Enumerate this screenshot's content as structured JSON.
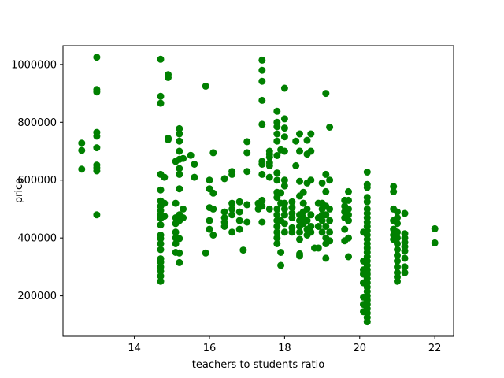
{
  "chart_data": {
    "type": "scatter",
    "xlabel": "teachers to students ratio",
    "ylabel": "price",
    "xlim": [
      12.1,
      22.5
    ],
    "ylim": [
      60000,
      1065000
    ],
    "xticks": [
      14,
      16,
      18,
      20,
      22
    ],
    "yticks": [
      200000,
      400000,
      600000,
      800000,
      1000000
    ],
    "grid": false,
    "marker_color": "#008000",
    "points": [
      [
        12.6,
        728000
      ],
      [
        12.6,
        703000
      ],
      [
        12.6,
        638000
      ],
      [
        13.0,
        1025000
      ],
      [
        13.0,
        913000
      ],
      [
        13.0,
        905000
      ],
      [
        13.0,
        765000
      ],
      [
        13.0,
        752000
      ],
      [
        13.0,
        712000
      ],
      [
        13.0,
        652000
      ],
      [
        13.0,
        643000
      ],
      [
        13.0,
        632000
      ],
      [
        13.0,
        480000
      ],
      [
        14.7,
        1018000
      ],
      [
        14.7,
        890000
      ],
      [
        14.7,
        866000
      ],
      [
        14.7,
        620000
      ],
      [
        14.7,
        566000
      ],
      [
        14.7,
        528000
      ],
      [
        14.7,
        510000
      ],
      [
        14.7,
        495000
      ],
      [
        14.7,
        480000
      ],
      [
        14.7,
        468000
      ],
      [
        14.7,
        445000
      ],
      [
        14.7,
        410000
      ],
      [
        14.7,
        398000
      ],
      [
        14.7,
        380000
      ],
      [
        14.7,
        360000
      ],
      [
        14.7,
        328000
      ],
      [
        14.7,
        316000
      ],
      [
        14.7,
        300000
      ],
      [
        14.7,
        285000
      ],
      [
        14.7,
        268000
      ],
      [
        14.7,
        250000
      ],
      [
        14.8,
        520000
      ],
      [
        14.8,
        475000
      ],
      [
        14.8,
        610000
      ],
      [
        14.9,
        965000
      ],
      [
        14.9,
        955000
      ],
      [
        14.9,
        745000
      ],
      [
        14.9,
        740000
      ],
      [
        15.1,
        665000
      ],
      [
        15.1,
        520000
      ],
      [
        15.1,
        470000
      ],
      [
        15.1,
        450000
      ],
      [
        15.1,
        420000
      ],
      [
        15.1,
        400000
      ],
      [
        15.1,
        380000
      ],
      [
        15.1,
        350000
      ],
      [
        15.2,
        778000
      ],
      [
        15.2,
        760000
      ],
      [
        15.2,
        735000
      ],
      [
        15.2,
        700000
      ],
      [
        15.2,
        672000
      ],
      [
        15.2,
        640000
      ],
      [
        15.2,
        620000
      ],
      [
        15.2,
        570000
      ],
      [
        15.2,
        480000
      ],
      [
        15.2,
        460000
      ],
      [
        15.2,
        398000
      ],
      [
        15.2,
        348000
      ],
      [
        15.2,
        315000
      ],
      [
        15.3,
        675000
      ],
      [
        15.3,
        500000
      ],
      [
        15.3,
        470000
      ],
      [
        15.5,
        686000
      ],
      [
        15.6,
        655000
      ],
      [
        15.6,
        610000
      ],
      [
        15.9,
        925000
      ],
      [
        15.9,
        348000
      ],
      [
        16.0,
        600000
      ],
      [
        16.0,
        570000
      ],
      [
        16.0,
        505000
      ],
      [
        16.0,
        460000
      ],
      [
        16.0,
        430000
      ],
      [
        16.1,
        695000
      ],
      [
        16.1,
        555000
      ],
      [
        16.1,
        500000
      ],
      [
        16.1,
        410000
      ],
      [
        16.4,
        605000
      ],
      [
        16.4,
        490000
      ],
      [
        16.4,
        470000
      ],
      [
        16.4,
        455000
      ],
      [
        16.4,
        440000
      ],
      [
        16.6,
        630000
      ],
      [
        16.6,
        620000
      ],
      [
        16.6,
        520000
      ],
      [
        16.6,
        500000
      ],
      [
        16.6,
        480000
      ],
      [
        16.6,
        420000
      ],
      [
        16.8,
        525000
      ],
      [
        16.8,
        490000
      ],
      [
        16.8,
        460000
      ],
      [
        16.8,
        430000
      ],
      [
        16.9,
        358000
      ],
      [
        17.0,
        733000
      ],
      [
        17.0,
        695000
      ],
      [
        17.0,
        630000
      ],
      [
        17.0,
        515000
      ],
      [
        17.0,
        455000
      ],
      [
        17.3,
        520000
      ],
      [
        17.3,
        500000
      ],
      [
        17.4,
        1015000
      ],
      [
        17.4,
        980000
      ],
      [
        17.4,
        942000
      ],
      [
        17.4,
        876000
      ],
      [
        17.4,
        793000
      ],
      [
        17.4,
        665000
      ],
      [
        17.4,
        655000
      ],
      [
        17.4,
        620000
      ],
      [
        17.4,
        530000
      ],
      [
        17.4,
        510000
      ],
      [
        17.4,
        455000
      ],
      [
        17.6,
        700000
      ],
      [
        17.6,
        690000
      ],
      [
        17.6,
        680000
      ],
      [
        17.6,
        660000
      ],
      [
        17.6,
        650000
      ],
      [
        17.6,
        610000
      ],
      [
        17.6,
        500000
      ],
      [
        17.8,
        838000
      ],
      [
        17.8,
        800000
      ],
      [
        17.8,
        785000
      ],
      [
        17.8,
        760000
      ],
      [
        17.8,
        735000
      ],
      [
        17.8,
        685000
      ],
      [
        17.8,
        625000
      ],
      [
        17.8,
        600000
      ],
      [
        17.8,
        558000
      ],
      [
        17.8,
        540000
      ],
      [
        17.8,
        500000
      ],
      [
        17.8,
        480000
      ],
      [
        17.8,
        460000
      ],
      [
        17.8,
        440000
      ],
      [
        17.8,
        420000
      ],
      [
        17.8,
        400000
      ],
      [
        17.8,
        380000
      ],
      [
        17.9,
        705000
      ],
      [
        17.9,
        556000
      ],
      [
        17.9,
        520000
      ],
      [
        17.9,
        460000
      ],
      [
        17.9,
        350000
      ],
      [
        17.9,
        305000
      ],
      [
        18.0,
        918000
      ],
      [
        18.0,
        812000
      ],
      [
        18.0,
        780000
      ],
      [
        18.0,
        750000
      ],
      [
        18.0,
        700000
      ],
      [
        18.0,
        600000
      ],
      [
        18.0,
        580000
      ],
      [
        18.0,
        520000
      ],
      [
        18.0,
        500000
      ],
      [
        18.0,
        480000
      ],
      [
        18.0,
        450000
      ],
      [
        18.0,
        420000
      ],
      [
        18.2,
        525000
      ],
      [
        18.2,
        505000
      ],
      [
        18.2,
        485000
      ],
      [
        18.2,
        470000
      ],
      [
        18.2,
        435000
      ],
      [
        18.2,
        420000
      ],
      [
        18.3,
        735000
      ],
      [
        18.3,
        650000
      ],
      [
        18.4,
        760000
      ],
      [
        18.4,
        700000
      ],
      [
        18.4,
        596000
      ],
      [
        18.4,
        545000
      ],
      [
        18.4,
        480000
      ],
      [
        18.4,
        460000
      ],
      [
        18.4,
        440000
      ],
      [
        18.4,
        420000
      ],
      [
        18.4,
        395000
      ],
      [
        18.4,
        345000
      ],
      [
        18.4,
        338000
      ],
      [
        18.5,
        558000
      ],
      [
        18.5,
        520000
      ],
      [
        18.5,
        490000
      ],
      [
        18.5,
        470000
      ],
      [
        18.5,
        450000
      ],
      [
        18.6,
        738000
      ],
      [
        18.6,
        690000
      ],
      [
        18.6,
        590000
      ],
      [
        18.6,
        500000
      ],
      [
        18.6,
        460000
      ],
      [
        18.6,
        430000
      ],
      [
        18.6,
        410000
      ],
      [
        18.7,
        760000
      ],
      [
        18.7,
        700000
      ],
      [
        18.7,
        600000
      ],
      [
        18.7,
        480000
      ],
      [
        18.7,
        440000
      ],
      [
        18.7,
        420000
      ],
      [
        18.8,
        365000
      ],
      [
        18.9,
        520000
      ],
      [
        18.9,
        470000
      ],
      [
        18.9,
        440000
      ],
      [
        18.9,
        365000
      ],
      [
        19.0,
        590000
      ],
      [
        19.0,
        520000
      ],
      [
        19.0,
        500000
      ],
      [
        19.0,
        480000
      ],
      [
        19.0,
        460000
      ],
      [
        19.0,
        420000
      ],
      [
        19.1,
        900000
      ],
      [
        19.1,
        620000
      ],
      [
        19.1,
        560000
      ],
      [
        19.1,
        510000
      ],
      [
        19.1,
        480000
      ],
      [
        19.1,
        440000
      ],
      [
        19.1,
        400000
      ],
      [
        19.1,
        380000
      ],
      [
        19.1,
        330000
      ],
      [
        19.2,
        783000
      ],
      [
        19.2,
        600000
      ],
      [
        19.2,
        500000
      ],
      [
        19.2,
        460000
      ],
      [
        19.2,
        420000
      ],
      [
        19.2,
        390000
      ],
      [
        19.6,
        530000
      ],
      [
        19.6,
        510000
      ],
      [
        19.6,
        490000
      ],
      [
        19.6,
        470000
      ],
      [
        19.6,
        430000
      ],
      [
        19.6,
        390000
      ],
      [
        19.7,
        560000
      ],
      [
        19.7,
        530000
      ],
      [
        19.7,
        500000
      ],
      [
        19.7,
        480000
      ],
      [
        19.7,
        460000
      ],
      [
        19.7,
        400000
      ],
      [
        19.7,
        335000
      ],
      [
        20.1,
        420000
      ],
      [
        20.1,
        320000
      ],
      [
        20.1,
        290000
      ],
      [
        20.1,
        275000
      ],
      [
        20.1,
        245000
      ],
      [
        20.1,
        195000
      ],
      [
        20.1,
        170000
      ],
      [
        20.1,
        145000
      ],
      [
        20.2,
        628000
      ],
      [
        20.2,
        585000
      ],
      [
        20.2,
        575000
      ],
      [
        20.2,
        540000
      ],
      [
        20.2,
        525000
      ],
      [
        20.2,
        500000
      ],
      [
        20.2,
        485000
      ],
      [
        20.2,
        470000
      ],
      [
        20.2,
        455000
      ],
      [
        20.2,
        440000
      ],
      [
        20.2,
        425000
      ],
      [
        20.2,
        410000
      ],
      [
        20.2,
        395000
      ],
      [
        20.2,
        380000
      ],
      [
        20.2,
        365000
      ],
      [
        20.2,
        350000
      ],
      [
        20.2,
        335000
      ],
      [
        20.2,
        320000
      ],
      [
        20.2,
        305000
      ],
      [
        20.2,
        290000
      ],
      [
        20.2,
        275000
      ],
      [
        20.2,
        260000
      ],
      [
        20.2,
        245000
      ],
      [
        20.2,
        230000
      ],
      [
        20.2,
        215000
      ],
      [
        20.2,
        200000
      ],
      [
        20.2,
        185000
      ],
      [
        20.2,
        170000
      ],
      [
        20.2,
        155000
      ],
      [
        20.2,
        140000
      ],
      [
        20.2,
        125000
      ],
      [
        20.2,
        110000
      ],
      [
        20.9,
        578000
      ],
      [
        20.9,
        560000
      ],
      [
        20.9,
        500000
      ],
      [
        20.9,
        460000
      ],
      [
        20.9,
        430000
      ],
      [
        20.9,
        410000
      ],
      [
        20.9,
        395000
      ],
      [
        21.0,
        490000
      ],
      [
        21.0,
        470000
      ],
      [
        21.0,
        450000
      ],
      [
        21.0,
        420000
      ],
      [
        21.0,
        400000
      ],
      [
        21.0,
        380000
      ],
      [
        21.0,
        360000
      ],
      [
        21.0,
        340000
      ],
      [
        21.0,
        320000
      ],
      [
        21.0,
        300000
      ],
      [
        21.0,
        280000
      ],
      [
        21.0,
        265000
      ],
      [
        21.0,
        250000
      ],
      [
        21.2,
        485000
      ],
      [
        21.2,
        415000
      ],
      [
        21.2,
        400000
      ],
      [
        21.2,
        385000
      ],
      [
        21.2,
        370000
      ],
      [
        21.2,
        355000
      ],
      [
        21.2,
        330000
      ],
      [
        21.2,
        300000
      ],
      [
        21.2,
        280000
      ],
      [
        22.0,
        432000
      ],
      [
        22.0,
        383000
      ]
    ]
  }
}
